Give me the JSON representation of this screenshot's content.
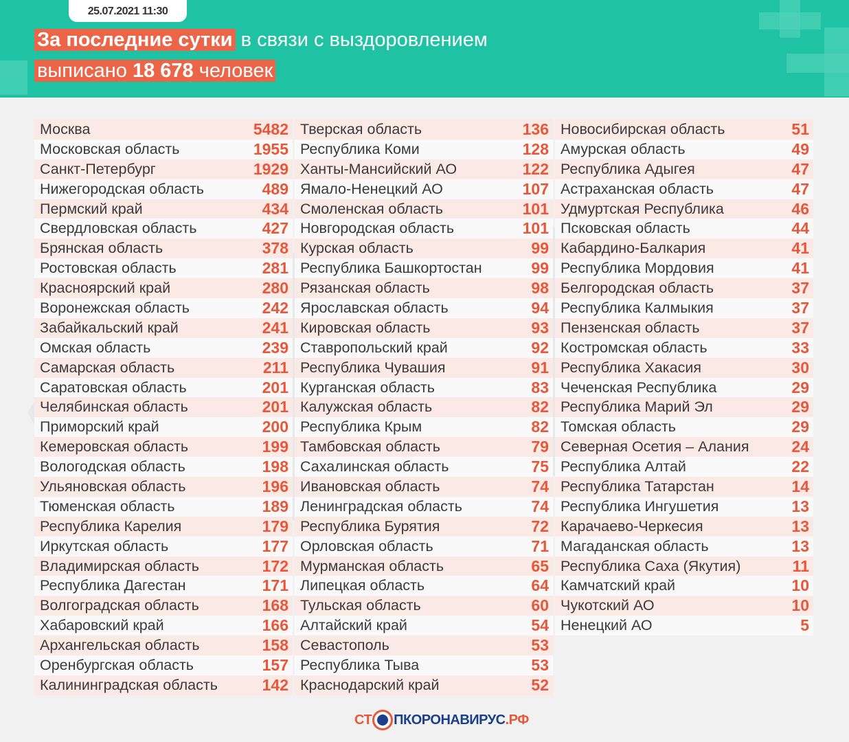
{
  "header": {
    "date": "25.07.2021 11:30",
    "line1_highlight": "За последние сутки",
    "line1_rest": " в связи с выздоровлением",
    "line2_pre": "выписано ",
    "line2_number": "18 678",
    "line2_post": " человек"
  },
  "columns": [
    [
      [
        "Москва",
        "5482"
      ],
      [
        "Московская область",
        "1955"
      ],
      [
        "Санкт-Петербург",
        "1929"
      ],
      [
        "Нижегородская область",
        "489"
      ],
      [
        "Пермский край",
        "434"
      ],
      [
        "Свердловская область",
        "427"
      ],
      [
        "Брянская область",
        "378"
      ],
      [
        "Ростовская область",
        "281"
      ],
      [
        "Красноярский край",
        "280"
      ],
      [
        "Воронежская область",
        "242"
      ],
      [
        "Забайкальский край",
        "241"
      ],
      [
        "Омская область",
        "239"
      ],
      [
        "Самарская область",
        "211"
      ],
      [
        "Саратовская область",
        "201"
      ],
      [
        "Челябинская область",
        "201"
      ],
      [
        "Приморский край",
        "200"
      ],
      [
        "Кемеровская область",
        "199"
      ],
      [
        "Вологодская область",
        "198"
      ],
      [
        "Ульяновская область",
        "196"
      ],
      [
        "Тюменская область",
        "189"
      ],
      [
        "Республика Карелия",
        "179"
      ],
      [
        "Иркутская область",
        "177"
      ],
      [
        "Владимирская область",
        "172"
      ],
      [
        "Республика Дагестан",
        "171"
      ],
      [
        "Волгоградская область",
        "168"
      ],
      [
        "Хабаровский край",
        "166"
      ],
      [
        "Архангельская область",
        "158"
      ],
      [
        "Оренбургская область",
        "157"
      ],
      [
        "Калининградская область",
        "142"
      ]
    ],
    [
      [
        "Тверская область",
        "136"
      ],
      [
        "Республика Коми",
        "128"
      ],
      [
        "Ханты-Мансийский АО",
        "122"
      ],
      [
        "Ямало-Ненецкий АО",
        "107"
      ],
      [
        "Смоленская область",
        "101"
      ],
      [
        "Новгородская область",
        "101"
      ],
      [
        "Курская область",
        "99"
      ],
      [
        "Республика Башкортостан",
        "99"
      ],
      [
        "Рязанская область",
        "98"
      ],
      [
        "Ярославская область",
        "94"
      ],
      [
        "Кировская область",
        "93"
      ],
      [
        "Ставропольский край",
        "92"
      ],
      [
        "Республика Чувашия",
        "91"
      ],
      [
        "Курганская область",
        "83"
      ],
      [
        "Калужская область",
        "82"
      ],
      [
        "Республика Крым",
        "82"
      ],
      [
        "Тамбовская область",
        "79"
      ],
      [
        "Сахалинская область",
        "75"
      ],
      [
        "Ивановская область",
        "74"
      ],
      [
        "Ленинградская область",
        "74"
      ],
      [
        "Республика Бурятия",
        "72"
      ],
      [
        "Орловская область",
        "71"
      ],
      [
        "Мурманская область",
        "65"
      ],
      [
        "Липецкая область",
        "64"
      ],
      [
        "Тульская область",
        "60"
      ],
      [
        "Алтайский край",
        "54"
      ],
      [
        "Севастополь",
        "53"
      ],
      [
        "Республика Тыва",
        "53"
      ],
      [
        "Краснодарский край",
        "52"
      ]
    ],
    [
      [
        "Новосибирская область",
        "51"
      ],
      [
        "Амурская область",
        "49"
      ],
      [
        "Республика Адыгея",
        "47"
      ],
      [
        "Астраханская область",
        "47"
      ],
      [
        "Удмуртская Республика",
        "46"
      ],
      [
        "Псковская область",
        "44"
      ],
      [
        "Кабардино-Балкария",
        "41"
      ],
      [
        "Республика Мордовия",
        "41"
      ],
      [
        "Белгородская область",
        "37"
      ],
      [
        "Республика Калмыкия",
        "37"
      ],
      [
        "Пензенская область",
        "37"
      ],
      [
        "Костромская область",
        "33"
      ],
      [
        "Республика Хакасия",
        "30"
      ],
      [
        "Чеченская Республика",
        "29"
      ],
      [
        "Республика Марий Эл",
        "29"
      ],
      [
        "Томская область",
        "29"
      ],
      [
        "Северная Осетия – Алания",
        "24"
      ],
      [
        "Республика Алтай",
        "22"
      ],
      [
        "Республика Татарстан",
        "14"
      ],
      [
        "Республика Ингушетия",
        "13"
      ],
      [
        "Карачаево-Черкесия",
        "13"
      ],
      [
        "Магаданская область",
        "13"
      ],
      [
        "Республика Саха (Якутия)",
        "11"
      ],
      [
        "Камчатский край",
        "10"
      ],
      [
        "Чукотский АО",
        "10"
      ],
      [
        "Ненецкий АО",
        "5"
      ]
    ]
  ],
  "footer": {
    "logo_part1": "СТ",
    "logo_part2": "ПКОРОНАВИРУС",
    "logo_part3": ".РФ"
  },
  "colors": {
    "header": "#1fc3a3",
    "highlight": "#ec6548",
    "value": "#e8573a"
  }
}
